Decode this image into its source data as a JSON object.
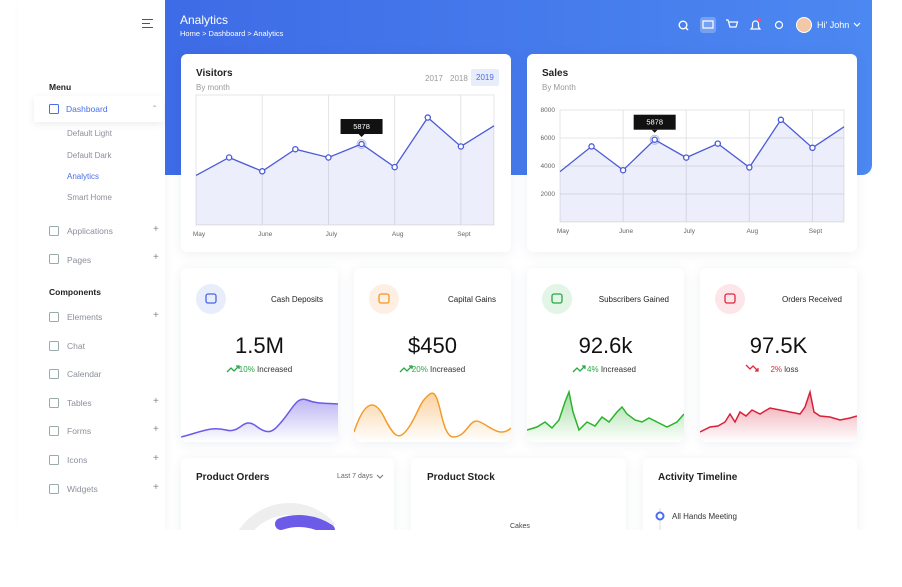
{
  "sidebar": {
    "menu_title": "Menu",
    "items": [
      {
        "label": "Dashboard",
        "sub": [
          "Default Light",
          "Default Dark",
          "Analytics",
          "Smart Home"
        ]
      },
      {
        "label": "Applications"
      },
      {
        "label": "Pages"
      }
    ],
    "components_title": "Components",
    "components": [
      "Elements",
      "Chat",
      "Calendar",
      "Tables",
      "Forms",
      "Icons",
      "Widgets"
    ]
  },
  "header": {
    "title": "Analytics",
    "breadcrumb": "Home > Dashboard > Analytics",
    "user": "Hi' John"
  },
  "chart_data": [
    {
      "type": "line",
      "title": "Visitors",
      "subtitle": "By month",
      "years": [
        "2017",
        "2018",
        "2019"
      ],
      "categories": [
        "May",
        null,
        "June",
        null,
        "July",
        null,
        "Aug",
        null,
        "Sept",
        null
      ],
      "values": [
        3600,
        4900,
        3900,
        5500,
        4900,
        5878,
        4200,
        7800,
        5700,
        7200
      ],
      "highlight": 5,
      "ylim": [
        0,
        9000
      ],
      "color": "#4b5bd6",
      "grid": true
    },
    {
      "type": "line",
      "title": "Sales",
      "subtitle": "By Month",
      "categories": [
        "May",
        null,
        "June",
        null,
        "July",
        null,
        "Aug",
        null,
        "Sept",
        null
      ],
      "values": [
        3600,
        5400,
        3700,
        5878,
        4600,
        5600,
        3900,
        7300,
        5300,
        6800
      ],
      "highlight": 3,
      "ylim": [
        0,
        8000
      ],
      "yticks": [
        2000,
        4000,
        6000,
        8000
      ],
      "color": "#4b5bd6",
      "grid": true
    }
  ],
  "stats": [
    {
      "title": "Cash Deposits",
      "value": "1.5M",
      "change": "10%",
      "trend": "Increased"
    },
    {
      "title": "Capital Gains",
      "value": "$450",
      "change": "20%",
      "trend": "Increased"
    },
    {
      "title": "Subscribers Gained",
      "value": "92.6k",
      "change": "4%",
      "trend": "Increased"
    },
    {
      "title": "Orders Received",
      "value": "97.5K",
      "change": "2%",
      "trend": "loss"
    }
  ],
  "panels": [
    {
      "title": "Product Orders",
      "filter": "Last 7 days"
    },
    {
      "title": "Product Stock",
      "label": "Cakes"
    },
    {
      "title": "Activity Timeline",
      "event": "All Hands Meeting"
    }
  ]
}
